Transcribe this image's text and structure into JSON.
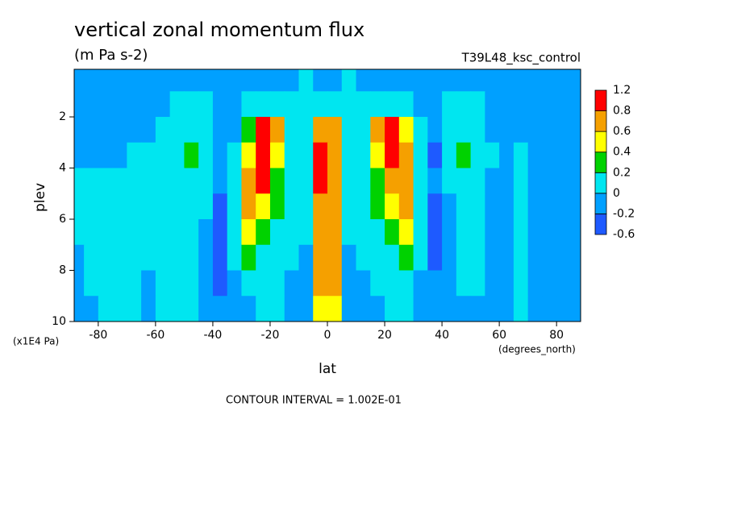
{
  "chart_data": {
    "type": "contourf",
    "title": "vertical zonal momentum flux",
    "subtitle": "(m Pa s-2)",
    "run_label": "T39L48_ksc_control",
    "ylabel": "plev",
    "xlabel": "lat",
    "y_units": "(x1E4 Pa)",
    "x_units": "(degrees_north)",
    "footer": "CONTOUR INTERVAL = 1.002E-01",
    "xlim": [
      -88.4,
      88.4
    ],
    "ylim": [
      10,
      0.14
    ],
    "xticks": [
      -80,
      -60,
      -40,
      -20,
      0,
      20,
      40,
      60,
      80
    ],
    "yticks": [
      2,
      4,
      6,
      8,
      10
    ],
    "levels": [
      -0.6,
      -0.2,
      0,
      0.2,
      0.4,
      0.6,
      0.8,
      1.2
    ],
    "colors": [
      "#1e5aff",
      "#00a0ff",
      "#00e6f0",
      "#00d200",
      "#ffff00",
      "#f5a000",
      "#ff0000"
    ],
    "x": [
      -87.5,
      -82.5,
      -77.5,
      -72.5,
      -67.5,
      -62.5,
      -57.5,
      -52.5,
      -47.5,
      -42.5,
      -37.5,
      -32.5,
      -27.5,
      -22.5,
      -17.5,
      -12.5,
      -7.5,
      -2.5,
      2.5,
      7.5,
      12.5,
      17.5,
      22.5,
      27.5,
      32.5,
      37.5,
      42.5,
      47.5,
      52.5,
      57.5,
      62.5,
      67.5,
      72.5,
      77.5,
      82.5,
      87.5
    ],
    "y": [
      0.5,
      1.5,
      2.5,
      3.5,
      4.5,
      5.5,
      6.5,
      7.5,
      8.5,
      9.5
    ],
    "z": [
      [
        -0.1,
        -0.1,
        -0.1,
        -0.1,
        -0.1,
        -0.1,
        -0.1,
        -0.1,
        -0.1,
        -0.1,
        -0.1,
        -0.1,
        -0.1,
        -0.1,
        -0.1,
        -0.1,
        0.1,
        -0.1,
        -0.1,
        0.1,
        -0.1,
        -0.1,
        -0.1,
        -0.1,
        -0.1,
        -0.1,
        -0.1,
        -0.1,
        -0.1,
        -0.1,
        -0.1,
        -0.1,
        -0.1,
        -0.1,
        -0.1,
        -0.1
      ],
      [
        -0.1,
        -0.1,
        -0.1,
        -0.1,
        -0.1,
        -0.1,
        -0.1,
        0.1,
        0.1,
        0.1,
        -0.1,
        -0.1,
        0.1,
        0.1,
        0.1,
        0.1,
        0.1,
        0.1,
        0.1,
        0.1,
        0.1,
        0.1,
        0.1,
        0.1,
        -0.1,
        -0.1,
        0.1,
        0.1,
        0.1,
        -0.1,
        -0.1,
        -0.1,
        -0.1,
        -0.1,
        -0.1,
        -0.1
      ],
      [
        -0.1,
        -0.1,
        -0.1,
        -0.1,
        -0.1,
        -0.1,
        0.1,
        0.1,
        0.1,
        0.1,
        -0.1,
        -0.1,
        0.3,
        0.9,
        0.7,
        0.1,
        0.1,
        0.7,
        0.7,
        0.1,
        0.1,
        0.7,
        0.9,
        0.5,
        0.1,
        -0.1,
        0.1,
        0.1,
        0.1,
        -0.1,
        -0.1,
        -0.1,
        -0.1,
        -0.1,
        -0.1,
        -0.1
      ],
      [
        -0.1,
        -0.1,
        -0.1,
        -0.1,
        0.1,
        0.1,
        0.1,
        0.1,
        0.3,
        0.1,
        -0.1,
        0.1,
        0.5,
        0.9,
        0.5,
        0.1,
        0.1,
        0.9,
        0.7,
        0.1,
        0.1,
        0.5,
        0.9,
        0.7,
        0.1,
        -0.3,
        0.1,
        0.3,
        0.1,
        0.1,
        -0.1,
        0.1,
        -0.1,
        -0.1,
        -0.1,
        -0.1
      ],
      [
        0.1,
        0.1,
        0.1,
        0.1,
        0.1,
        0.1,
        0.1,
        0.1,
        0.1,
        0.1,
        -0.1,
        0.1,
        0.7,
        0.9,
        0.3,
        0.1,
        0.1,
        0.9,
        0.7,
        0.1,
        0.1,
        0.3,
        0.7,
        0.7,
        0.1,
        -0.1,
        0.1,
        0.1,
        0.1,
        -0.1,
        -0.1,
        0.1,
        -0.1,
        -0.1,
        -0.1,
        -0.1
      ],
      [
        0.1,
        0.1,
        0.1,
        0.1,
        0.1,
        0.1,
        0.1,
        0.1,
        0.1,
        0.1,
        -0.3,
        0.1,
        0.7,
        0.5,
        0.3,
        0.1,
        0.1,
        0.7,
        0.7,
        0.1,
        0.1,
        0.3,
        0.5,
        0.7,
        0.1,
        -0.3,
        -0.1,
        0.1,
        0.1,
        -0.1,
        -0.1,
        0.1,
        -0.1,
        -0.1,
        -0.1,
        -0.1
      ],
      [
        0.1,
        0.1,
        0.1,
        0.1,
        0.1,
        0.1,
        0.1,
        0.1,
        0.1,
        -0.1,
        -0.3,
        0.1,
        0.5,
        0.3,
        0.1,
        0.1,
        0.1,
        0.7,
        0.7,
        0.1,
        0.1,
        0.1,
        0.3,
        0.5,
        0.1,
        -0.3,
        -0.1,
        0.1,
        0.1,
        -0.1,
        -0.1,
        0.1,
        -0.1,
        -0.1,
        -0.1,
        -0.1
      ],
      [
        -0.1,
        0.1,
        0.1,
        0.1,
        0.1,
        0.1,
        0.1,
        0.1,
        0.1,
        -0.1,
        -0.3,
        0.1,
        0.3,
        0.1,
        0.1,
        0.1,
        -0.1,
        0.7,
        0.7,
        -0.1,
        0.1,
        0.1,
        0.1,
        0.3,
        0.1,
        -0.3,
        -0.1,
        0.1,
        0.1,
        -0.1,
        -0.1,
        0.1,
        -0.1,
        -0.1,
        -0.1,
        -0.1
      ],
      [
        -0.1,
        0.1,
        0.1,
        0.1,
        0.1,
        -0.1,
        0.1,
        0.1,
        0.1,
        -0.1,
        -0.3,
        -0.1,
        0.1,
        0.1,
        0.1,
        -0.1,
        -0.1,
        0.7,
        0.7,
        -0.1,
        -0.1,
        0.1,
        0.1,
        0.1,
        -0.1,
        -0.1,
        -0.1,
        0.1,
        0.1,
        -0.1,
        -0.1,
        0.1,
        -0.1,
        -0.1,
        -0.1,
        -0.1
      ],
      [
        -0.1,
        -0.1,
        0.1,
        0.1,
        0.1,
        -0.1,
        0.1,
        0.1,
        0.1,
        -0.1,
        -0.1,
        -0.1,
        -0.1,
        0.1,
        0.1,
        -0.1,
        -0.1,
        0.5,
        0.5,
        -0.1,
        -0.1,
        -0.1,
        0.1,
        0.1,
        -0.1,
        -0.1,
        -0.1,
        -0.1,
        -0.1,
        -0.1,
        -0.1,
        0.1,
        -0.1,
        -0.1,
        -0.1,
        -0.1
      ]
    ]
  }
}
